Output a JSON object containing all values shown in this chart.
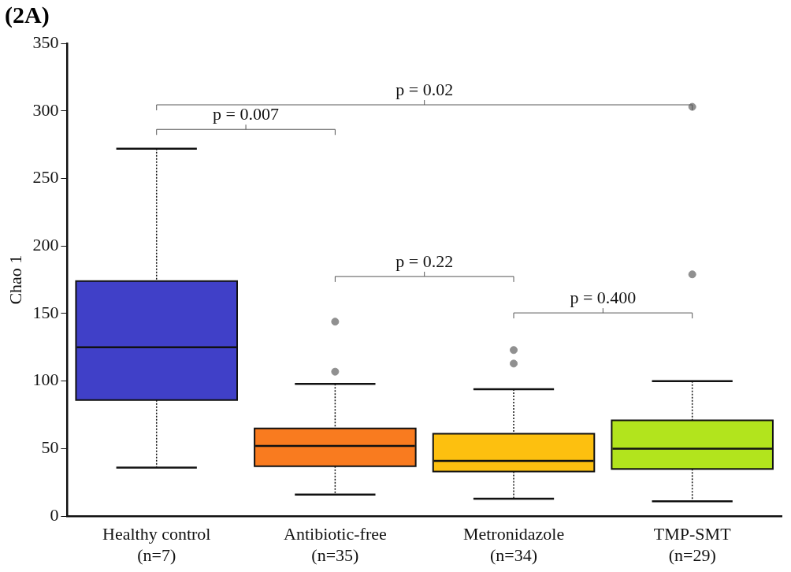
{
  "chart_data": {
    "type": "box",
    "title": "(2A)",
    "ylabel": "Chao 1",
    "categories": [
      "Healthy control\n(n=7)",
      "Antibiotic-free\n(n=35)",
      "Metronidazole\n(n=34)",
      "TMP-SMT\n(n=29)"
    ],
    "colors": [
      "#4040c8",
      "#f97b1f",
      "#fdc00f",
      "#b2e41d"
    ],
    "boxes": [
      {
        "low": 36,
        "q1": 86,
        "median": 125,
        "q3": 174,
        "high": 272
      },
      {
        "low": 16,
        "q1": 37,
        "median": 52,
        "q3": 65,
        "high": 98,
        "outliers": [
          107,
          144
        ]
      },
      {
        "low": 13,
        "q1": 33,
        "median": 41,
        "q3": 61,
        "high": 94,
        "outliers": [
          113,
          123
        ]
      },
      {
        "low": 11,
        "q1": 35,
        "median": 50,
        "q3": 71,
        "high": 100,
        "outliers": [
          179,
          303
        ]
      }
    ],
    "ylim": [
      0,
      350
    ],
    "yticks": [
      0,
      50,
      100,
      150,
      200,
      250,
      300,
      350
    ],
    "grid": false,
    "legend": false,
    "annotations": [
      "p = 0.02",
      "p = 0.007",
      "p = 0.22",
      "p = 0.400"
    ]
  }
}
